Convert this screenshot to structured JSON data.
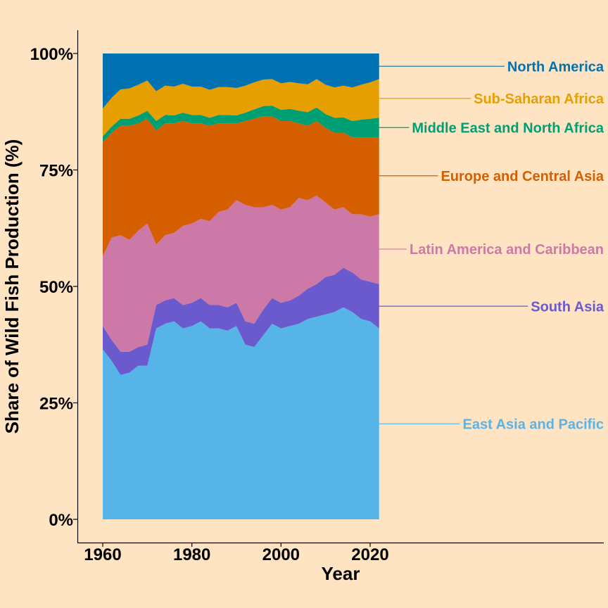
{
  "chart_data": {
    "type": "area",
    "stacked": true,
    "normalized": true,
    "title": "",
    "xlabel": "Year",
    "ylabel": "Share of Wild Fish Production (%)",
    "xlim": [
      1955,
      2100
    ],
    "ylim": [
      0,
      100
    ],
    "x_ticks": [
      1960,
      1980,
      2000,
      2020
    ],
    "x_tick_labels": [
      "1960",
      "1980",
      "2000",
      "2020"
    ],
    "y_ticks": [
      0,
      25,
      50,
      75,
      100
    ],
    "y_tick_labels": [
      "0%",
      "25%",
      "50%",
      "75%",
      "100%"
    ],
    "grid": false,
    "legend": "direct labels at right",
    "x": [
      1960,
      1962,
      1964,
      1966,
      1968,
      1970,
      1972,
      1974,
      1976,
      1978,
      1980,
      1982,
      1984,
      1986,
      1988,
      1990,
      1992,
      1994,
      1996,
      1998,
      2000,
      2002,
      2004,
      2006,
      2008,
      2010,
      2012,
      2014,
      2016,
      2018,
      2020,
      2022
    ],
    "series": [
      {
        "name": "East Asia and Pacific",
        "color": "#56B4E9",
        "values": [
          36.5,
          34,
          31,
          31.5,
          33,
          33,
          41,
          42,
          42.5,
          41,
          41.5,
          42.5,
          41,
          41,
          40.5,
          41.5,
          37.5,
          37,
          39.5,
          42,
          41,
          41.5,
          42,
          43,
          43.5,
          44,
          44.5,
          45.5,
          44.5,
          43,
          42.5,
          41
        ]
      },
      {
        "name": "South Asia",
        "color": "#6A5ACD",
        "values": [
          5,
          4.5,
          5,
          4.5,
          4,
          4.5,
          5,
          5,
          5,
          5,
          5,
          5,
          5,
          5,
          5,
          5,
          5,
          5,
          5.5,
          5.5,
          5.5,
          5.5,
          6,
          6.5,
          7,
          8,
          8,
          8.5,
          8.5,
          8.5,
          8.5,
          9.5
        ]
      },
      {
        "name": "Latin America and Caribbean",
        "color": "#CC79A7",
        "values": [
          15,
          22,
          25,
          24,
          25,
          26,
          13,
          14,
          14,
          17,
          17,
          17,
          18,
          20,
          21,
          22,
          25,
          25,
          22,
          20,
          20,
          20,
          21,
          19,
          19,
          16,
          14,
          13,
          12.5,
          14,
          14,
          15
        ]
      },
      {
        "name": "Europe and Central Asia",
        "color": "#D55E00",
        "values": [
          24.5,
          22.5,
          23.5,
          24.5,
          23,
          22.5,
          24.5,
          24,
          23.5,
          22.5,
          21.5,
          20.5,
          20.5,
          19,
          18.5,
          16.5,
          18,
          19,
          19.5,
          19,
          19,
          18.5,
          16,
          16,
          16,
          16,
          16.5,
          16,
          16.5,
          16.5,
          17,
          16.5
        ]
      },
      {
        "name": "Middle East and North Africa",
        "color": "#009E73",
        "values": [
          1.2,
          1.3,
          1.5,
          1.5,
          1.7,
          1.7,
          2,
          1.8,
          1.7,
          1.8,
          1.8,
          1.8,
          1.7,
          1.8,
          1.8,
          1.7,
          1.8,
          2,
          2.2,
          2.3,
          2.4,
          2.6,
          2.7,
          2.9,
          2.9,
          3,
          3.2,
          3.3,
          3.5,
          3.8,
          4,
          4.2
        ]
      },
      {
        "name": "Sub-Saharan Africa",
        "color": "#E69F00",
        "values": [
          6,
          6.2,
          6.3,
          6.5,
          6.6,
          6.5,
          6.4,
          6.3,
          6.2,
          6.2,
          6.1,
          6.1,
          6,
          6,
          6,
          5.9,
          5.8,
          5.8,
          5.7,
          5.7,
          5.7,
          5.8,
          5.9,
          6,
          6.1,
          6.3,
          6.5,
          6.8,
          7.2,
          7.5,
          7.8,
          8.3
        ]
      },
      {
        "name": "North America",
        "color": "#0072B2",
        "values": [
          11.8,
          9.5,
          7.7,
          7.5,
          6.7,
          5.8,
          8.1,
          6.9,
          7.1,
          6.5,
          7.1,
          7.1,
          7.8,
          7.2,
          7.2,
          7.4,
          6.9,
          6.2,
          5.6,
          5.5,
          6.4,
          6.1,
          6.4,
          6.6,
          5.5,
          6.7,
          7.3,
          6.9,
          7.3,
          6.7,
          6.2,
          5.5
        ]
      }
    ]
  }
}
